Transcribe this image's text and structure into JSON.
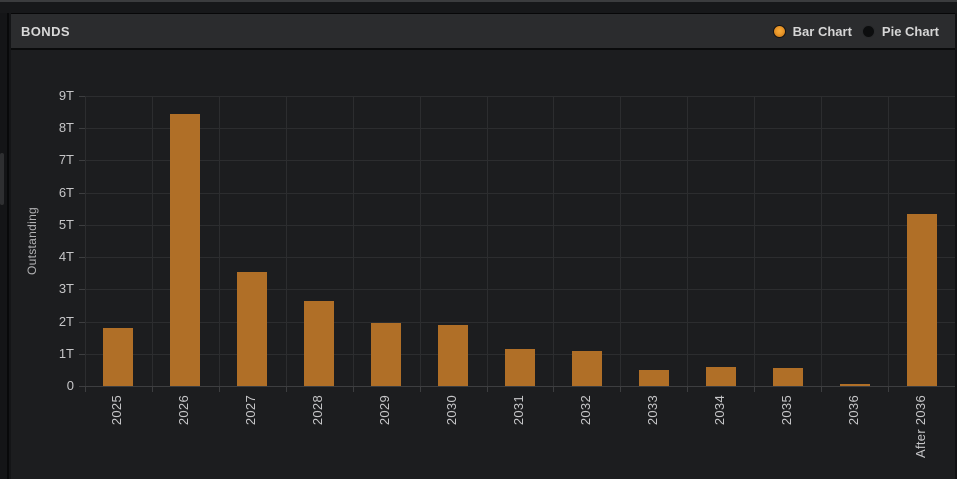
{
  "header": {
    "title": "BONDS"
  },
  "legend": {
    "items": [
      {
        "label": "Bar Chart",
        "selected": true
      },
      {
        "label": "Pie Chart",
        "selected": false
      }
    ]
  },
  "colors": {
    "page_bg": "#141517",
    "header_bg": "#2b2c2e",
    "panel_bg": "#1c1d1f",
    "gridline": "#2c2d2f",
    "axis_line": "#3d3e40",
    "bar": "#b06f27",
    "accent_orange": "#ec9a2b",
    "header_text": "#d8d8d8",
    "axis_text": "#c6c6c8"
  },
  "chart_data": {
    "type": "bar",
    "title": "",
    "categories": [
      "2025",
      "2026",
      "2027",
      "2028",
      "2029",
      "2030",
      "2031",
      "2032",
      "2033",
      "2034",
      "2035",
      "2036",
      "After 2036"
    ],
    "values": [
      1.8,
      8.45,
      3.55,
      2.65,
      1.95,
      1.9,
      1.15,
      1.1,
      0.5,
      0.6,
      0.55,
      0.05,
      5.35
    ],
    "unit": "T",
    "xlabel": "",
    "ylabel": "Outstanding",
    "ylim": [
      0,
      9
    ],
    "ytick_labels": [
      "0",
      "1T",
      "2T",
      "3T",
      "4T",
      "5T",
      "6T",
      "7T",
      "8T",
      "9T"
    ],
    "grid": true,
    "legend_position": "top-right",
    "bar_color": "#b06f27"
  }
}
